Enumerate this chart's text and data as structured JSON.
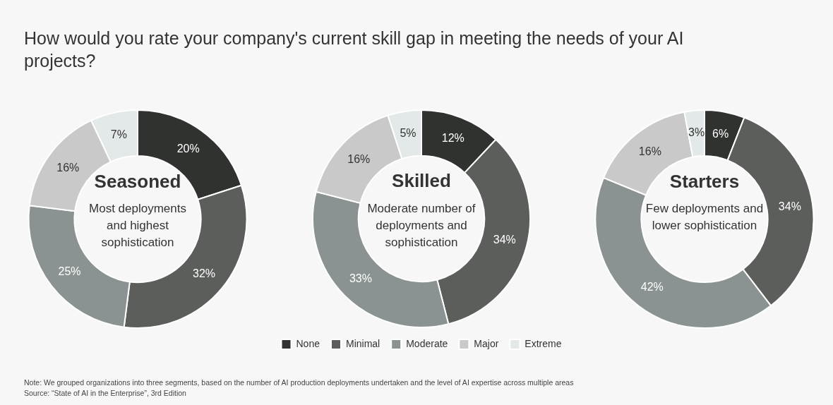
{
  "chart_data": [
    {
      "type": "donut",
      "title": "How would you rate your company's current skill gap in meeting the needs of your AI projects?",
      "categories": [
        null,
        null,
        null,
        null,
        null
      ],
      "values": [
        20,
        32,
        25,
        16,
        7
      ],
      "value_labels": [
        "20%",
        "32%",
        "25%",
        "16%",
        "7%"
      ],
      "colors": [
        "#2f322f",
        "#5b5e5b",
        "#8a9391",
        "#c8c9c8",
        "#e3e8e8"
      ],
      "annotations": [
        "Seasoned",
        "Most deployments and highest sophistication"
      ]
    },
    {
      "type": "donut",
      "categories": [
        "None",
        "Minimal",
        "Moderate",
        "Major",
        "Extreme"
      ],
      "values": [
        12,
        34,
        33,
        16,
        5
      ],
      "value_labels": [
        "12%",
        "34%",
        "33%",
        "16%",
        "5%"
      ],
      "colors": [
        "#2f322f",
        "#5b5e5b",
        "#8a9391",
        "#c8c9c8",
        "#e3e8e8"
      ],
      "legend": "bottom",
      "annotations": [
        "Skilled",
        "Moderate number of deployments and sophistication"
      ]
    },
    {
      "type": "donut",
      "categories": [
        null,
        null,
        null,
        null,
        null
      ],
      "values": [
        6,
        34,
        42,
        16,
        3
      ],
      "value_labels": [
        "6%",
        "34%",
        "42%",
        "16%",
        "3%"
      ],
      "colors": [
        "#2f322f",
        "#5b5e5b",
        "#8a9391",
        "#c8c9c8",
        "#e3e8e8"
      ],
      "annotations": [
        "Starters",
        "Few deployments and lower sophistication",
        "Note: We grouped organizations into three segments, based on the number of AI production deployments undertaken and the level of AI expertise across multiple areas",
        "Source: “State of AI in the Enterprise”, 3rd Edition"
      ]
    }
  ]
}
